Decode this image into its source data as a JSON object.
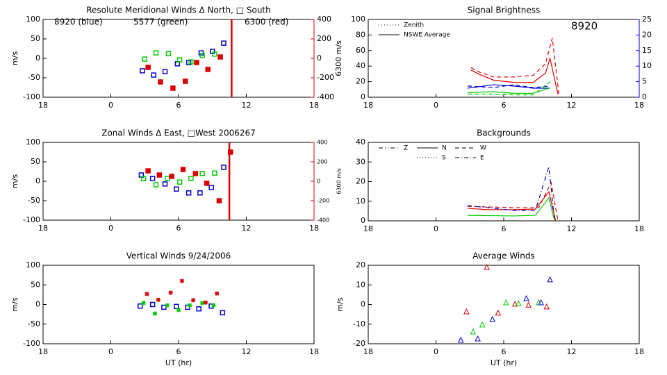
{
  "chart_data": [
    {
      "type": "scatter",
      "title": "Resolute Meridional Winds Δ North, □ South",
      "ylabel": "m/s",
      "y2label": "6300 m/s",
      "y2color": "#dd0000",
      "xlim": [
        -6,
        18
      ],
      "xticks": [
        {
          "value": -6,
          "label": "18"
        },
        0,
        6,
        12,
        18
      ],
      "ylim": [
        -100,
        100
      ],
      "yticks": [
        -100,
        -50,
        0,
        50,
        100
      ],
      "y2lim": [
        -400,
        400
      ],
      "y2ticks": [
        -400,
        -200,
        0,
        200,
        400
      ],
      "annotations": [
        {
          "text": "8920 (blue)",
          "color": "#0000cc"
        },
        {
          "text": "5577 (green)",
          "color": "#00cc00"
        },
        {
          "text": "6300 (red)",
          "color": "#dd0000"
        }
      ],
      "vline": {
        "x": 10.7,
        "color": "#dd0000"
      },
      "series": [
        {
          "color": "#0000cc",
          "marker": "square",
          "x": [
            2.8,
            3.8,
            4.8,
            5.9,
            6.9,
            8.0,
            9.0,
            10.0
          ],
          "values": [
            -32,
            -43,
            -34,
            -14,
            -11,
            14,
            18,
            39
          ]
        },
        {
          "color": "#00cc00",
          "marker": "square",
          "x": [
            3.0,
            4.0,
            5.1,
            6.1,
            7.1,
            8.1,
            9.2
          ],
          "values": [
            -2,
            14,
            12,
            -4,
            -9,
            7,
            11
          ]
        },
        {
          "color": "#dd0000",
          "marker": "filled-square",
          "axis": "y2",
          "x": [
            3.3,
            4.4,
            5.5,
            6.6,
            7.6,
            8.6,
            9.7
          ],
          "values": [
            -93,
            -243,
            -307,
            -236,
            -43,
            -114,
            14
          ]
        }
      ]
    },
    {
      "type": "scatter",
      "title": "Zonal Winds Δ East, □West 2006267",
      "ylabel": "m/s",
      "y2label": "6300 m/s",
      "y2color": "#dd0000",
      "xlim": [
        -6,
        18
      ],
      "xticks": [
        {
          "value": -6,
          "label": "18"
        },
        0,
        6,
        12,
        18
      ],
      "ylim": [
        -100,
        100
      ],
      "yticks": [
        -100,
        -50,
        0,
        50,
        100
      ],
      "y2lim": [
        -400,
        400
      ],
      "y2ticks": [
        -400,
        -200,
        0,
        200,
        400
      ],
      "vline": {
        "x": 10.5,
        "color": "#dd0000"
      },
      "series": [
        {
          "color": "#0000cc",
          "marker": "square",
          "x": [
            2.7,
            3.7,
            4.8,
            5.8,
            6.9,
            7.9,
            8.9,
            10.0
          ],
          "values": [
            16,
            7,
            -7,
            -20,
            -30,
            -30,
            -16,
            36
          ]
        },
        {
          "color": "#00cc00",
          "marker": "square",
          "x": [
            2.9,
            4.0,
            5.0,
            6.1,
            7.1,
            8.1,
            9.2
          ],
          "values": [
            7,
            -9,
            7,
            -2,
            7,
            20,
            21
          ]
        },
        {
          "color": "#dd0000",
          "marker": "filled-square",
          "axis": "y2",
          "x": [
            3.3,
            4.3,
            5.4,
            6.4,
            7.5,
            8.5,
            9.6,
            10.6
          ],
          "values": [
            107,
            64,
            50,
            121,
            79,
            -21,
            -200,
            300
          ]
        }
      ]
    },
    {
      "type": "scatter",
      "title": "Vertical Winds 9/24/2006",
      "ylabel": "m/s",
      "xlabel": "UT (hr)",
      "xlim": [
        -6,
        18
      ],
      "xticks": [
        {
          "value": -6,
          "label": "18"
        },
        0,
        6,
        12,
        18
      ],
      "ylim": [
        -100,
        100
      ],
      "yticks": [
        -100,
        -50,
        0,
        50,
        100
      ],
      "series": [
        {
          "color": "#0000cc",
          "marker": "square",
          "x": [
            2.6,
            3.7,
            4.7,
            5.8,
            6.8,
            7.8,
            8.9,
            9.9
          ],
          "values": [
            -4,
            0,
            -7,
            -5,
            -7,
            -11,
            -4,
            -21
          ]
        },
        {
          "color": "#00cc00",
          "marker": "asterisk",
          "x": [
            2.9,
            3.9,
            5.0,
            6.0,
            7.0,
            8.1,
            9.1
          ],
          "values": [
            4,
            -23,
            -2,
            -14,
            -2,
            4,
            -2
          ]
        },
        {
          "color": "#dd0000",
          "marker": "asterisk",
          "x": [
            3.2,
            4.2,
            5.3,
            6.3,
            7.3,
            8.4,
            9.4
          ],
          "values": [
            27,
            12,
            30,
            60,
            11,
            5,
            28
          ]
        }
      ]
    },
    {
      "type": "line",
      "title": "Signal Brightness",
      "y2color": "#0000cc",
      "xlim": [
        -6,
        18
      ],
      "xticks": [
        {
          "value": -6,
          "label": "18"
        },
        0,
        6,
        12,
        18
      ],
      "ylim": [
        0,
        100
      ],
      "yticks": [
        0,
        20,
        40,
        60,
        80,
        100
      ],
      "y2lim": [
        0,
        25
      ],
      "y2ticks": [
        0,
        5,
        10,
        15,
        20,
        25
      ],
      "annotations": [
        {
          "text": "8920",
          "color": "#0000cc"
        }
      ],
      "legend": [
        {
          "label": "Zenith",
          "dash": "dotted"
        },
        {
          "label": "NSWE Average",
          "dash": "solid"
        }
      ],
      "series": [
        {
          "color": "#dd0000",
          "dash": "dashed",
          "x": [
            3.1,
            3.9,
            5.1,
            6.9,
            8.6,
            9.7,
            10.3,
            10.9
          ],
          "values": [
            38,
            32,
            26,
            26,
            28,
            43,
            76,
            2
          ]
        },
        {
          "color": "#dd0000",
          "dash": "solid",
          "x": [
            3.1,
            3.9,
            5.1,
            6.9,
            8.6,
            9.7,
            10.1,
            10.8
          ],
          "values": [
            35,
            29,
            22,
            19,
            19,
            31,
            50,
            4
          ]
        },
        {
          "color": "#0000cc",
          "dash": "solid",
          "axis": "y2",
          "x": [
            2.8,
            5.1,
            6.9,
            8.6,
            10.1
          ],
          "values": [
            2.9,
            4.0,
            3.6,
            2.9,
            2.9
          ]
        },
        {
          "color": "#0000cc",
          "dash": "dashed",
          "axis": "y2",
          "x": [
            2.8,
            5.1,
            6.9,
            8.6,
            10.1
          ],
          "values": [
            3.6,
            3.1,
            4.0,
            3.1,
            3.6
          ]
        },
        {
          "color": "#00cc00",
          "dash": "solid",
          "x": [
            2.8,
            5.1,
            6.9,
            8.6,
            10.1
          ],
          "values": [
            6,
            7,
            5,
            5,
            12
          ]
        },
        {
          "color": "#00cc00",
          "dash": "dashed",
          "x": [
            2.8,
            5.1,
            6.9,
            8.6,
            10.1
          ],
          "values": [
            4,
            4,
            3,
            3,
            20
          ]
        }
      ]
    },
    {
      "type": "line",
      "title": "Backgrounds",
      "xlim": [
        -6,
        18
      ],
      "xticks": [
        {
          "value": -6,
          "label": "18"
        },
        0,
        6,
        12,
        18
      ],
      "ylim": [
        0,
        40
      ],
      "yticks": [
        0,
        10,
        20,
        30,
        40
      ],
      "legend": [
        {
          "label": "Z",
          "dash": "dash-dot-dot"
        },
        {
          "label": "N",
          "dash": "solid"
        },
        {
          "label": "W",
          "dash": "dashed"
        },
        {
          "label": "S",
          "dash": "dotted"
        },
        {
          "label": "E",
          "dash": "dash-dot"
        }
      ],
      "series": [
        {
          "color": "#dd0000",
          "dash": "solid",
          "x": [
            2.8,
            4.5,
            6.9,
            8.8,
            10.0,
            10.6
          ],
          "values": [
            6.4,
            5.7,
            5.7,
            6.0,
            14.8,
            0
          ]
        },
        {
          "color": "#dd0000",
          "dash": "dashed",
          "x": [
            2.8,
            6.9,
            9.1,
            10.2,
            10.8
          ],
          "values": [
            7.4,
            6.7,
            6.7,
            19.5,
            0
          ]
        },
        {
          "color": "#0000cc",
          "dash": "dash-dot",
          "x": [
            2.8,
            6.9,
            8.8,
            10.0,
            10.5
          ],
          "values": [
            7.8,
            5.3,
            5.3,
            27.6,
            0
          ]
        },
        {
          "color": "#00cc00",
          "dash": "solid",
          "x": [
            2.8,
            6.9,
            8.8,
            10.0,
            10.5
          ],
          "values": [
            2.8,
            2.5,
            2.8,
            11.7,
            0
          ]
        }
      ]
    },
    {
      "type": "scatter",
      "title": "Average Winds",
      "ylabel": "m/s",
      "xlabel": "UT (hr)",
      "xlim": [
        -6,
        18
      ],
      "xticks": [
        {
          "value": -6,
          "label": "18"
        },
        0,
        6,
        12,
        18
      ],
      "ylim": [
        -20,
        20
      ],
      "yticks": [
        -20,
        -10,
        0,
        10,
        20
      ],
      "series": [
        {
          "color": "#dd0000",
          "marker": "triangle",
          "x": [
            2.7,
            4.5,
            5.5,
            7.0,
            8.2,
            9.8
          ],
          "values": [
            -3.7,
            18.9,
            -4.4,
            0.2,
            -0.3,
            -1.2
          ]
        },
        {
          "color": "#00cc00",
          "marker": "triangle",
          "x": [
            3.3,
            4.1,
            6.2,
            7.3,
            9.1
          ],
          "values": [
            -14,
            -10.4,
            0.9,
            0.5,
            0.9
          ]
        },
        {
          "color": "#0000cc",
          "marker": "triangle",
          "x": [
            2.2,
            3.7,
            5.0,
            8.0,
            9.3,
            10.1
          ],
          "values": [
            -18.2,
            -17.5,
            -7.6,
            3.0,
            0.9,
            12.6
          ]
        }
      ]
    }
  ]
}
